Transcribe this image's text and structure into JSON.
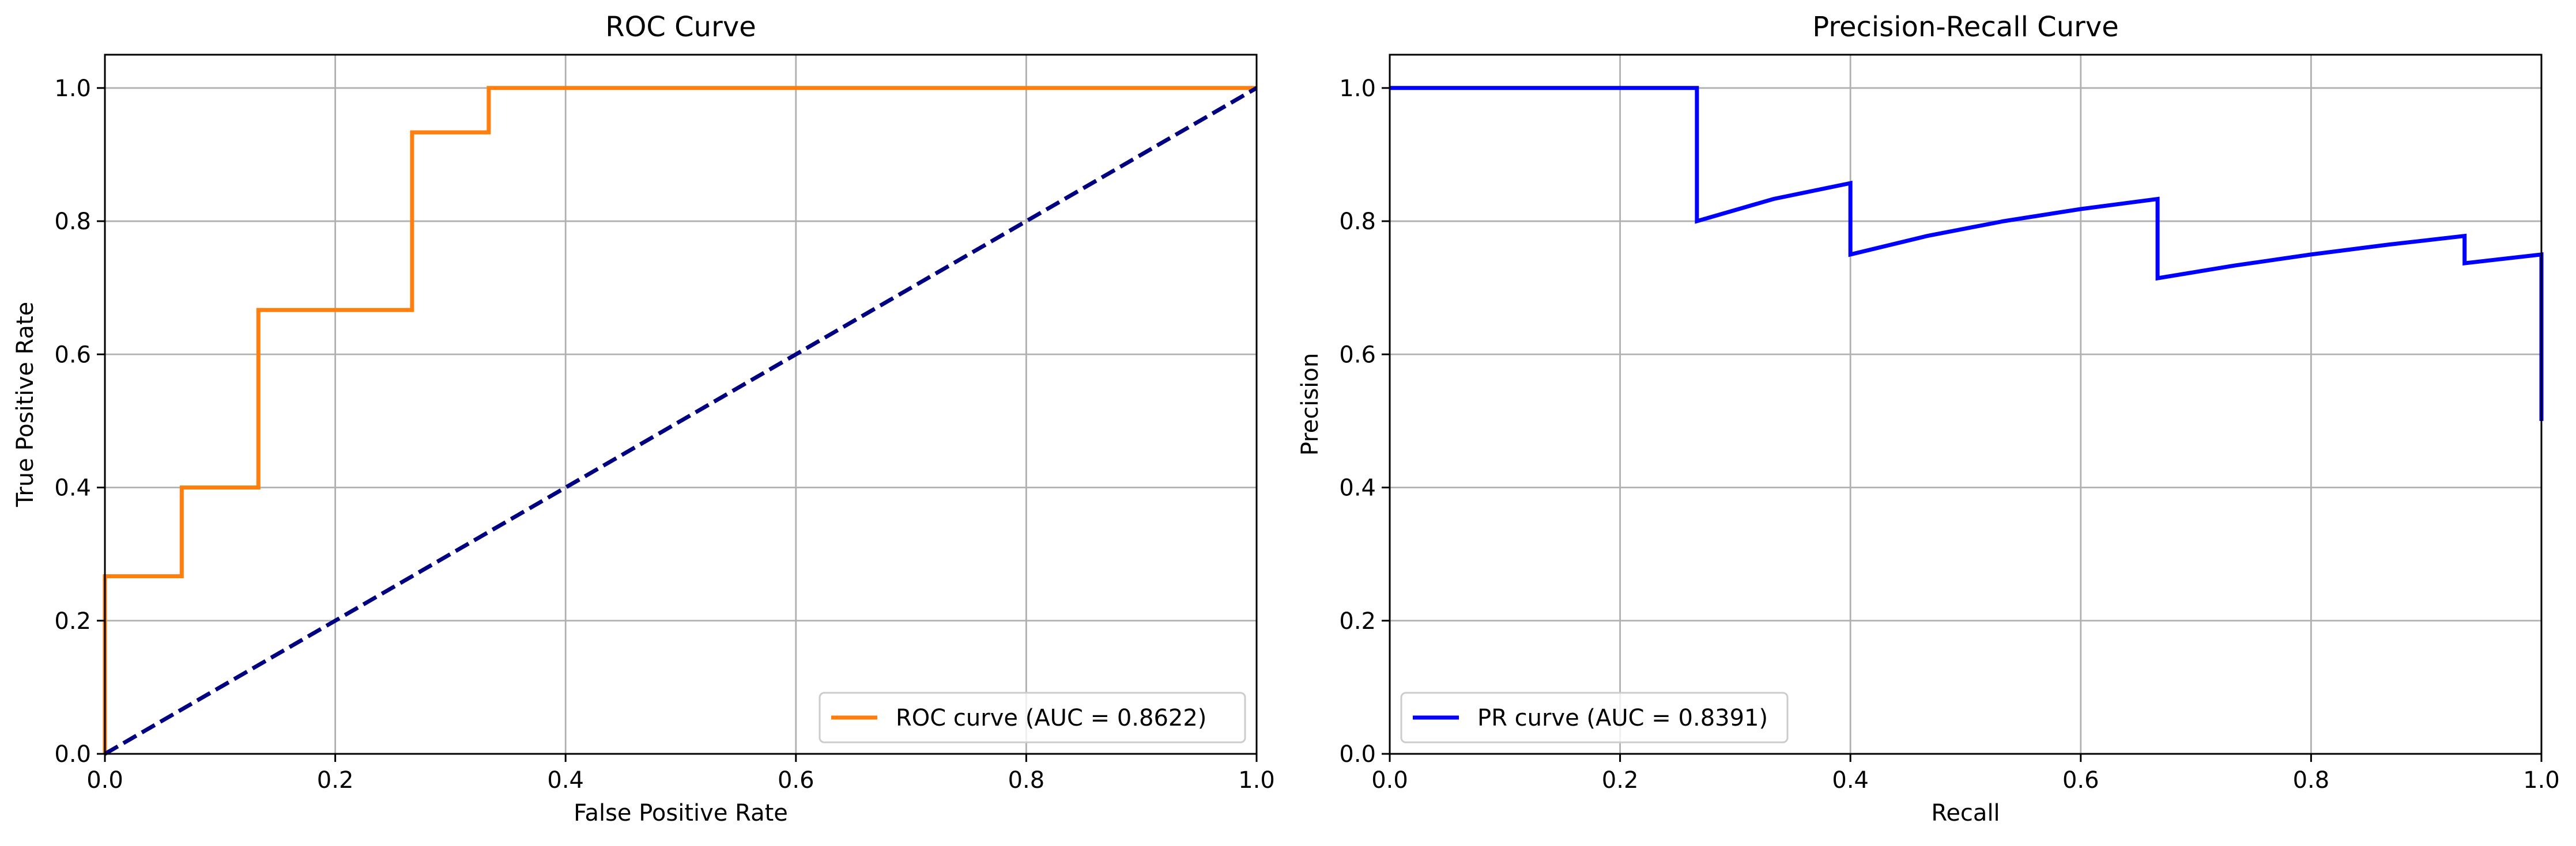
{
  "chart_data": [
    {
      "type": "line",
      "title": "ROC Curve",
      "xlabel": "False Positive Rate",
      "ylabel": "True Positive Rate",
      "xlim": [
        0.0,
        1.0
      ],
      "ylim": [
        0.0,
        1.05
      ],
      "xticks": [
        "0.0",
        "0.2",
        "0.4",
        "0.6",
        "0.8",
        "1.0"
      ],
      "yticks": [
        "0.0",
        "0.2",
        "0.4",
        "0.6",
        "0.8",
        "1.0"
      ],
      "grid": true,
      "legend_position": "lower-right",
      "series": [
        {
          "name": "ROC curve (AUC = 0.8622)",
          "color": "#ff7f0e",
          "style": "solid",
          "x": [
            0.0,
            0.0,
            0.0667,
            0.0667,
            0.1333,
            0.1333,
            0.2667,
            0.2667,
            0.3333,
            0.3333,
            1.0
          ],
          "y": [
            0.0,
            0.2667,
            0.2667,
            0.4,
            0.4,
            0.6667,
            0.6667,
            0.9333,
            0.9333,
            1.0,
            1.0
          ],
          "in_legend": true
        },
        {
          "name": "",
          "color": "#000080",
          "style": "dashed",
          "x": [
            0.0,
            1.0
          ],
          "y": [
            0.0,
            1.0
          ],
          "in_legend": false
        }
      ]
    },
    {
      "type": "line",
      "title": "Precision-Recall Curve",
      "xlabel": "Recall",
      "ylabel": "Precision",
      "xlim": [
        0.0,
        1.0
      ],
      "ylim": [
        0.0,
        1.05
      ],
      "xticks": [
        "0.0",
        "0.2",
        "0.4",
        "0.6",
        "0.8",
        "1.0"
      ],
      "yticks": [
        "0.0",
        "0.2",
        "0.4",
        "0.6",
        "0.8",
        "1.0"
      ],
      "grid": true,
      "legend_position": "lower-left",
      "series": [
        {
          "name": "PR curve (AUC = 0.8391)",
          "color": "#0000ff",
          "style": "solid",
          "x": [
            0.0,
            0.0667,
            0.1333,
            0.2,
            0.2667,
            0.2667,
            0.3333,
            0.4,
            0.4,
            0.4667,
            0.5333,
            0.6,
            0.6667,
            0.6667,
            0.7333,
            0.8,
            0.8667,
            0.9333,
            0.9333,
            1.0,
            1.0
          ],
          "y": [
            1.0,
            1.0,
            1.0,
            1.0,
            1.0,
            0.8,
            0.8333,
            0.8571,
            0.75,
            0.7778,
            0.8,
            0.8182,
            0.8333,
            0.7143,
            0.7333,
            0.75,
            0.7647,
            0.7778,
            0.7368,
            0.75,
            0.5
          ],
          "in_legend": true
        }
      ]
    }
  ]
}
